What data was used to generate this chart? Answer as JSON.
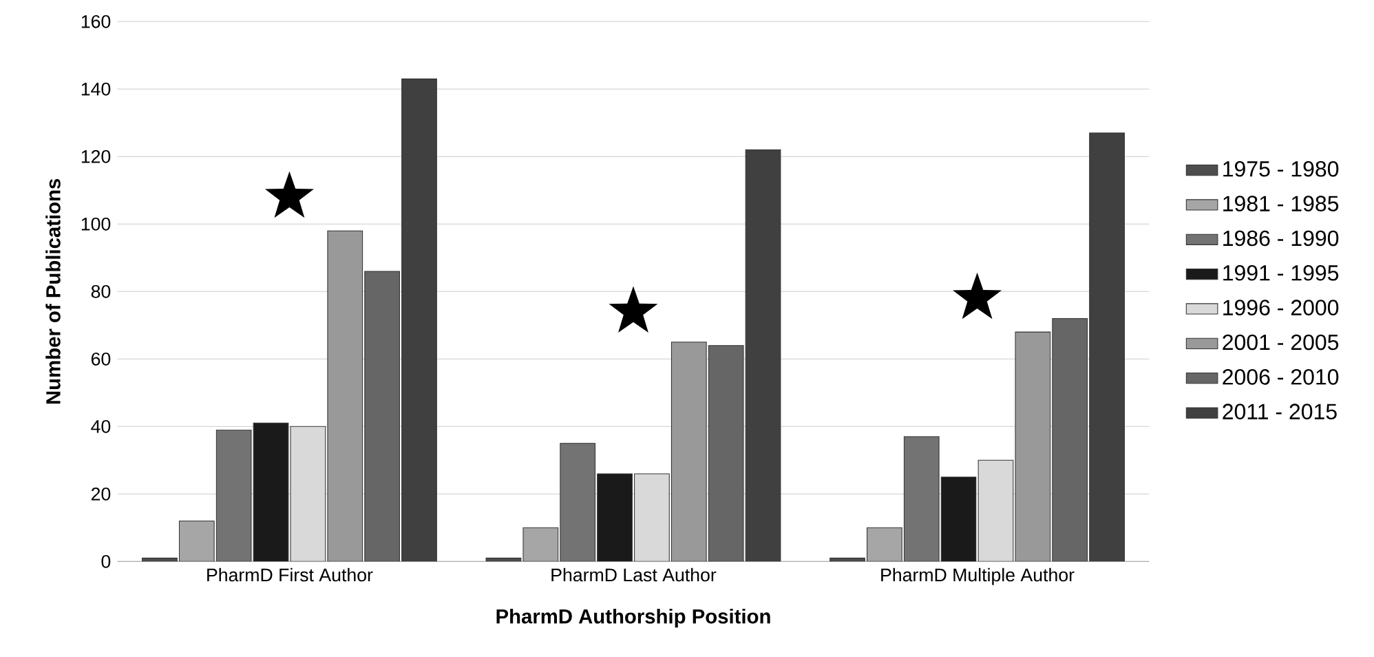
{
  "chart_data": {
    "type": "bar",
    "xlabel": "PharmD Authorship Position",
    "ylabel": "Number of Publications",
    "categories": [
      "PharmD First Author",
      "PharmD Last Author",
      "PharmD Multiple Author"
    ],
    "series": [
      {
        "name": "1975 - 1980",
        "color": "#4d4d4d",
        "values": [
          1,
          1,
          1
        ]
      },
      {
        "name": "1981 - 1985",
        "color": "#a6a6a6",
        "values": [
          12,
          10,
          10
        ]
      },
      {
        "name": "1986 - 1990",
        "color": "#737373",
        "values": [
          39,
          35,
          37
        ]
      },
      {
        "name": "1991 - 1995",
        "color": "#1a1a1a",
        "values": [
          41,
          26,
          25
        ]
      },
      {
        "name": "1996 - 2000",
        "color": "#d9d9d9",
        "values": [
          40,
          26,
          30
        ]
      },
      {
        "name": "2001 - 2005",
        "color": "#999999",
        "values": [
          98,
          65,
          68
        ]
      },
      {
        "name": "2006 - 2010",
        "color": "#666666",
        "values": [
          86,
          64,
          72
        ]
      },
      {
        "name": "2011 - 2015",
        "color": "#404040",
        "values": [
          143,
          122,
          127
        ]
      },
      {
        "type": "scatter",
        "marker": "star",
        "color": "#000000",
        "x": [
          "PharmD First Author",
          "PharmD Last Author",
          "PharmD Multiple Author"
        ],
        "values": [
          108,
          74,
          78
        ]
      }
    ],
    "ylim": [
      0,
      160
    ],
    "yticks": [
      0,
      20,
      40,
      60,
      80,
      100,
      120,
      140,
      160
    ],
    "grid": "y",
    "legend": "right"
  }
}
